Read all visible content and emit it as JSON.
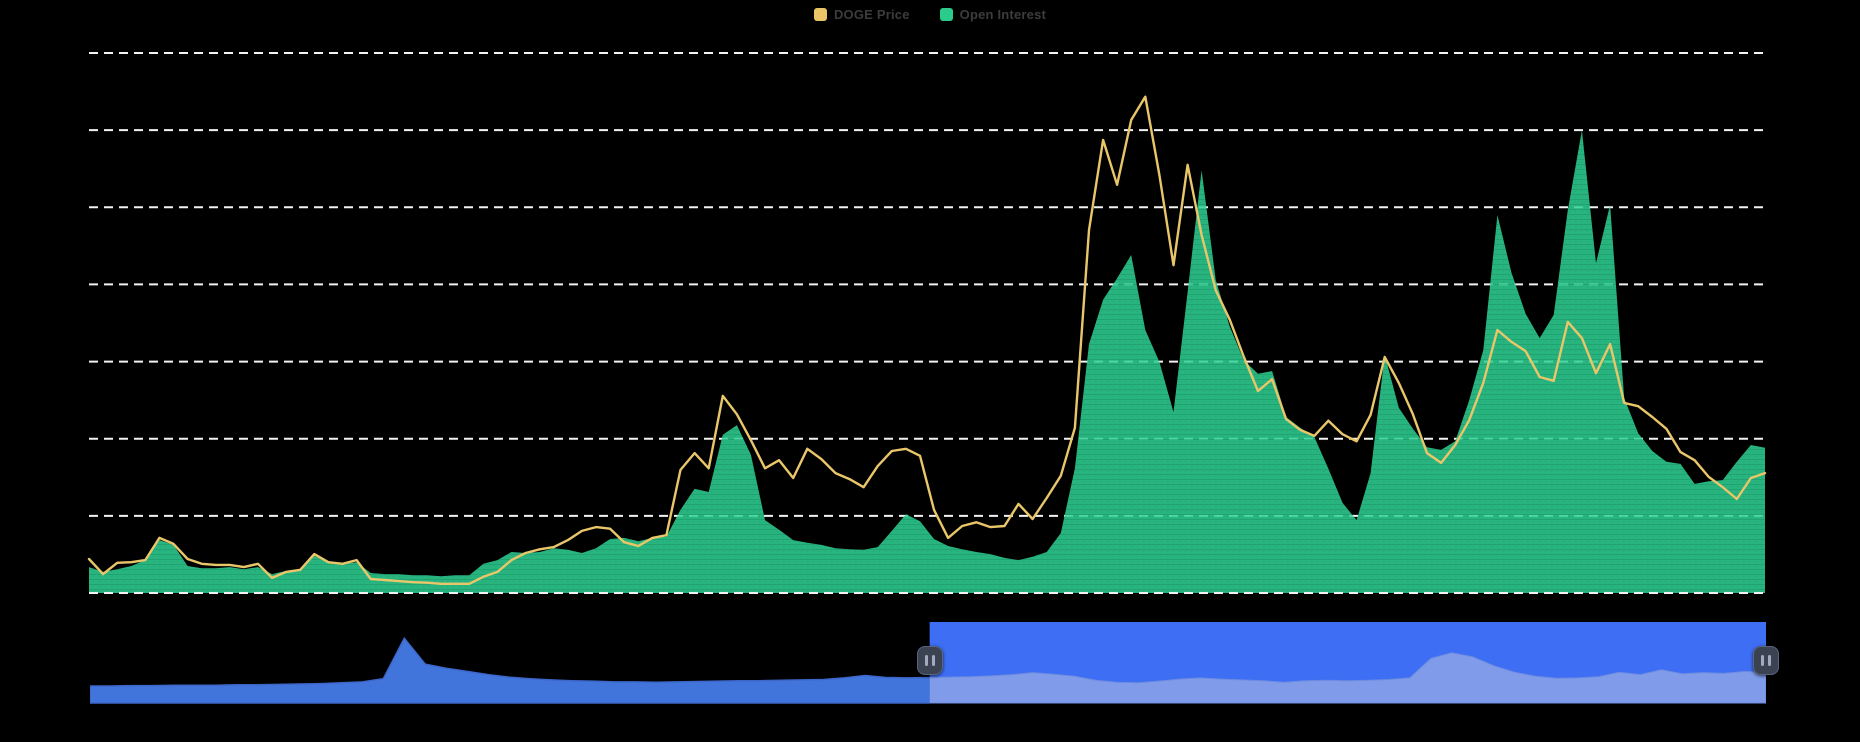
{
  "theme": {
    "background": "#000000",
    "gridline_color": "#f2f2f2",
    "legend_text_color": "#3c3c3c",
    "price_color": "#eac66a",
    "open_interest_color": "#2bcb8c",
    "navigator": {
      "unselected_fill": "#4275dc",
      "unselected_edge": "#3c67c9",
      "selected_mask": "#3d6ef3",
      "selected_fill": "#7f9be9",
      "selected_edge": "#6d8ce0",
      "handle_background": "#3b4252",
      "handle_border": "#5a6480",
      "handle_bar_color": "#a2aabe"
    }
  },
  "legend": {
    "items": [
      {
        "label": "DOGE Price",
        "color": "#e9c567",
        "icon": "square-swatch"
      },
      {
        "label": "Open Interest",
        "color": "#2bcb8c",
        "icon": "square-swatch"
      }
    ]
  },
  "chart_data": {
    "type": "area",
    "title": "",
    "xlabel": "",
    "ylabel": "",
    "x_axis": {
      "tick_labels_visible": false
    },
    "y_axis": {
      "tick_labels_visible": false,
      "gridline_count": 8,
      "grid_style": "dashed"
    },
    "legend_position": "top-center",
    "values_unit": "percent of plot height (no numeric axis labels are rendered in the UI)",
    "ylim": [
      0,
      100
    ],
    "series": [
      {
        "name": "DOGE Price",
        "type": "line",
        "color": "#eac66a",
        "values": [
          6.3,
          3.5,
          5.6,
          5.7,
          6.1,
          10.2,
          9.1,
          6.3,
          5.4,
          5.2,
          5.2,
          4.8,
          5.4,
          2.8,
          3.9,
          4.3,
          7.2,
          5.7,
          5.4,
          6.1,
          2.6,
          2.4,
          2.2,
          2.0,
          1.9,
          1.7,
          1.7,
          1.7,
          3.0,
          3.9,
          6.1,
          7.4,
          8.1,
          8.5,
          9.8,
          11.5,
          12.2,
          11.9,
          9.4,
          8.7,
          10.2,
          10.7,
          22.8,
          25.9,
          23.1,
          36.5,
          33.1,
          28.3,
          23.1,
          24.6,
          21.3,
          26.7,
          24.8,
          22.2,
          21.1,
          19.6,
          23.5,
          26.3,
          26.7,
          25.4,
          15.4,
          10.2,
          12.4,
          13.1,
          12.2,
          12.4,
          16.5,
          13.7,
          17.6,
          21.7,
          30.6,
          67.2,
          83.9,
          75.6,
          87.6,
          91.9,
          77.4,
          60.7,
          79.3,
          66.3,
          56.1,
          50.6,
          43.7,
          37.4,
          39.6,
          32.2,
          30.2,
          29.1,
          31.9,
          29.4,
          28.1,
          33.0,
          43.7,
          38.9,
          33.1,
          25.9,
          24.1,
          27.4,
          32.0,
          38.9,
          48.7,
          46.5,
          44.8,
          40.0,
          39.3,
          50.2,
          47.2,
          40.7,
          46.1,
          35.2,
          34.6,
          32.6,
          30.4,
          26.1,
          24.6,
          21.5,
          19.6,
          17.4,
          21.3,
          22.2
        ]
      },
      {
        "name": "Open Interest",
        "type": "area",
        "color": "#2bcb8c",
        "values": [
          4.8,
          3.9,
          4.4,
          5.0,
          6.1,
          9.8,
          8.9,
          5.0,
          4.6,
          4.6,
          4.8,
          4.4,
          4.8,
          3.5,
          4.1,
          4.3,
          6.9,
          5.7,
          5.4,
          5.7,
          3.7,
          3.5,
          3.5,
          3.3,
          3.3,
          3.1,
          3.3,
          3.3,
          5.4,
          6.1,
          7.6,
          7.4,
          7.6,
          8.3,
          8.0,
          7.4,
          8.3,
          10.0,
          10.2,
          9.6,
          10.2,
          10.4,
          15.4,
          19.3,
          18.7,
          29.3,
          31.1,
          25.6,
          13.5,
          11.7,
          9.8,
          9.3,
          8.9,
          8.3,
          8.1,
          8.0,
          8.5,
          11.5,
          14.6,
          13.3,
          10.0,
          8.7,
          8.1,
          7.6,
          7.2,
          6.5,
          6.1,
          6.7,
          7.6,
          11.1,
          23.1,
          46.1,
          54.3,
          58.3,
          62.6,
          48.7,
          42.8,
          33.5,
          55.7,
          78.3,
          58.0,
          49.3,
          43.1,
          40.6,
          41.1,
          32.6,
          30.6,
          28.9,
          23.0,
          16.7,
          13.5,
          22.2,
          44.1,
          34.3,
          30.4,
          27.0,
          26.5,
          28.1,
          35.7,
          45.0,
          70.0,
          59.3,
          51.7,
          47.2,
          51.5,
          70.9,
          85.7,
          61.1,
          71.9,
          36.1,
          29.6,
          26.3,
          24.3,
          23.9,
          20.2,
          20.7,
          20.9,
          24.3,
          27.4,
          26.9
        ]
      }
    ],
    "navigator": {
      "description": "range-selector mini area chart at bottom",
      "values": [
        21,
        21,
        21.5,
        21.5,
        22,
        22,
        22,
        22.5,
        22.5,
        23,
        23.5,
        24,
        25,
        26,
        30,
        80,
        48,
        43,
        39,
        35,
        32,
        30,
        28.5,
        27.5,
        27,
        26,
        26,
        25.5,
        26,
        26.5,
        27,
        27.5,
        27.5,
        28,
        28.5,
        29,
        31,
        34,
        31.5,
        31,
        31.5,
        32,
        32.5,
        33.5,
        35,
        37.5,
        35.5,
        33,
        28,
        25.5,
        25,
        27,
        29.5,
        31,
        29.5,
        28.5,
        27.5,
        25.5,
        27.5,
        28,
        27.5,
        28,
        29,
        31,
        55,
        62,
        57,
        46,
        38,
        33,
        30.5,
        31,
        32.5,
        38,
        35,
        41,
        36,
        37.5,
        36.5,
        39,
        37.5
      ],
      "selection": {
        "from_pct": 50.1,
        "to_pct": 100
      }
    }
  }
}
